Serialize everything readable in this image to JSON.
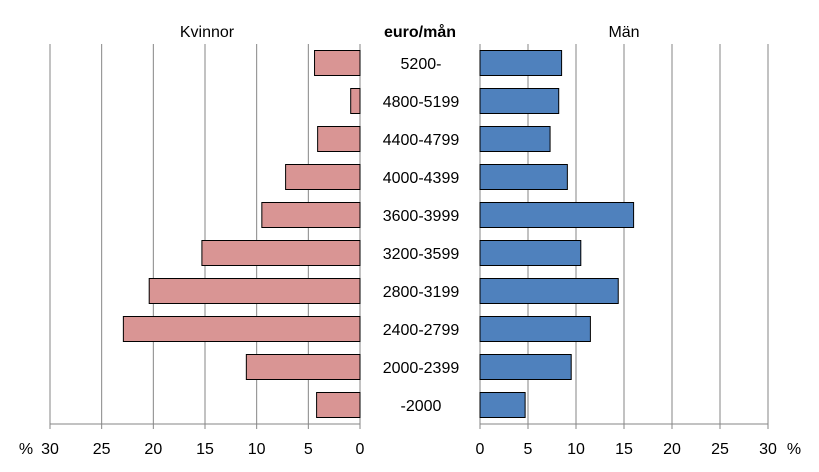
{
  "chart_data": {
    "type": "bar",
    "orientation": "horizontal",
    "layout": "population-pyramid",
    "category_label": "euro/mån",
    "categories": [
      "5200-",
      "4800-5199",
      "4400-4799",
      "4000-4399",
      "3600-3999",
      "3200-3599",
      "2800-3199",
      "2400-2799",
      "2000-2399",
      "-2000"
    ],
    "series": [
      {
        "name": "Kvinnor",
        "side": "left",
        "color": "#d99594",
        "values": [
          4.4,
          0.9,
          4.1,
          7.2,
          9.5,
          15.3,
          20.4,
          22.9,
          11.0,
          4.2
        ]
      },
      {
        "name": "Män",
        "side": "right",
        "color": "#4f81bd",
        "values": [
          8.5,
          8.2,
          7.3,
          9.1,
          16.0,
          10.5,
          14.4,
          11.5,
          9.5,
          4.7
        ]
      }
    ],
    "xlim": [
      0,
      30
    ],
    "xticks": [
      0,
      5,
      10,
      15,
      20,
      25,
      30
    ],
    "xlabel": "%",
    "grid": true,
    "legend": "none"
  }
}
